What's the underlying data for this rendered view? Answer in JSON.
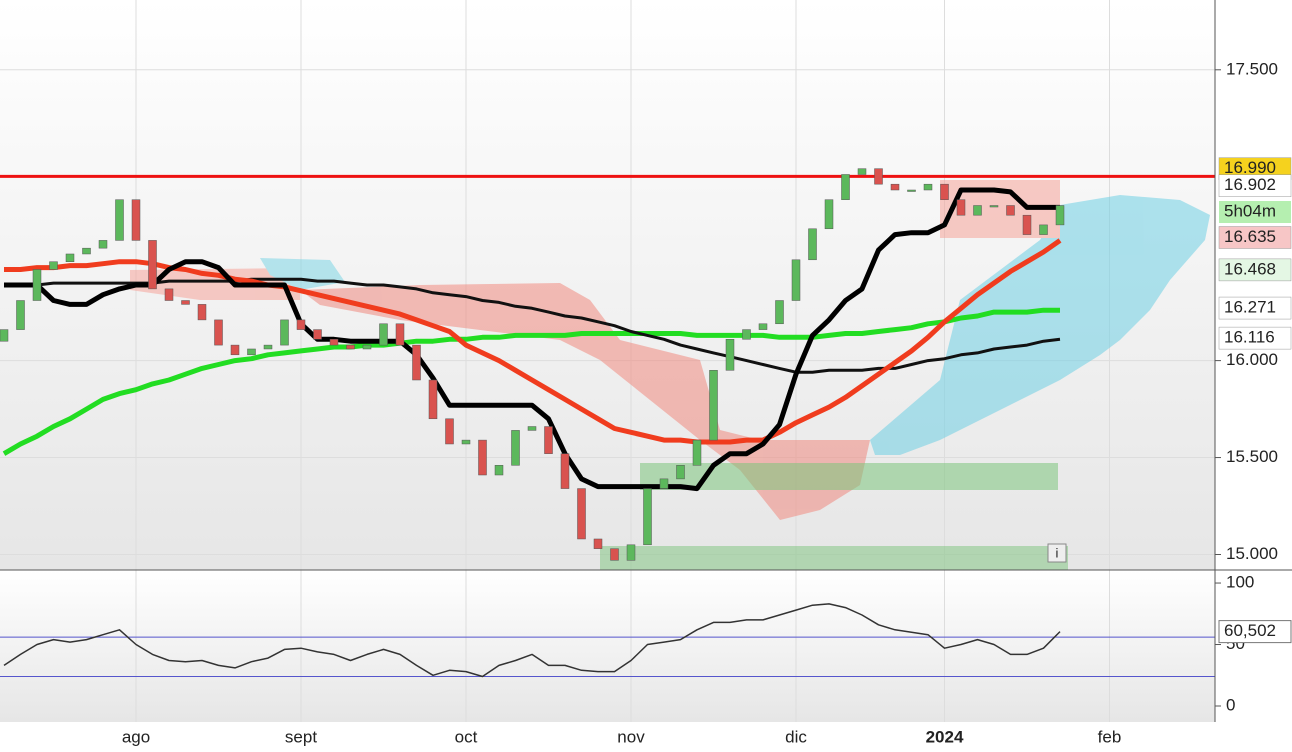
{
  "chart_data": [
    {
      "type": "candlestick",
      "categories": [
        null,
        null,
        null,
        null,
        null,
        null,
        null,
        null,
        "ago",
        null,
        null,
        null,
        null,
        null,
        null,
        null,
        null,
        null,
        "sept",
        null,
        null,
        null,
        null,
        null,
        null,
        null,
        null,
        null,
        "oct",
        null,
        null,
        null,
        null,
        null,
        null,
        null,
        null,
        null,
        "nov",
        null,
        null,
        null,
        null,
        null,
        null,
        null,
        null,
        null,
        "dic",
        null,
        null,
        null,
        null,
        null,
        null,
        null,
        null,
        "2024",
        null,
        null,
        null,
        null,
        null,
        null,
        null,
        null,
        null,
        "feb",
        null,
        null,
        null,
        null,
        null,
        null
      ],
      "open": [
        16.1,
        16.16,
        16.31,
        16.47,
        16.51,
        16.55,
        16.58,
        16.62,
        16.83,
        16.62,
        16.37,
        16.31,
        16.29,
        16.21,
        16.08,
        16.03,
        16.06,
        16.08,
        16.21,
        16.16,
        16.11,
        16.08,
        16.06,
        16.08,
        16.19,
        16.08,
        15.9,
        15.7,
        15.57,
        15.59,
        15.41,
        15.46,
        15.64,
        15.66,
        15.52,
        15.34,
        15.08,
        15.03,
        14.97,
        15.05,
        15.34,
        15.39,
        15.46,
        15.59,
        15.95,
        16.11,
        16.16,
        16.19,
        16.31,
        16.52,
        16.68,
        16.83,
        16.96,
        16.99,
        16.91,
        16.88,
        16.88,
        16.91,
        16.83,
        16.75,
        16.8,
        16.8,
        16.75,
        16.65,
        16.7,
        null,
        null,
        null,
        null,
        null,
        null,
        null,
        null,
        null
      ],
      "close": [
        16.16,
        16.31,
        16.47,
        16.51,
        16.55,
        16.58,
        16.62,
        16.83,
        16.62,
        16.37,
        16.31,
        16.29,
        16.21,
        16.08,
        16.03,
        16.06,
        16.08,
        16.21,
        16.16,
        16.11,
        16.08,
        16.06,
        16.08,
        16.19,
        16.08,
        15.9,
        15.7,
        15.57,
        15.59,
        15.41,
        15.46,
        15.64,
        15.66,
        15.52,
        15.34,
        15.08,
        15.03,
        14.97,
        15.05,
        15.34,
        15.39,
        15.46,
        15.59,
        15.95,
        16.11,
        16.16,
        16.19,
        16.31,
        16.52,
        16.68,
        16.83,
        16.96,
        16.99,
        16.91,
        16.88,
        16.88,
        16.91,
        16.83,
        16.75,
        16.8,
        16.8,
        16.75,
        16.65,
        16.7,
        16.8,
        null,
        null,
        null,
        null,
        null,
        null,
        null,
        null,
        null
      ],
      "up_color": "#5cb85c",
      "down_color": "#d9534f",
      "series": [
        {
          "color": "#22dd22",
          "width": 5,
          "values": [
            15.52,
            15.57,
            15.61,
            15.66,
            15.7,
            15.75,
            15.8,
            15.83,
            15.85,
            15.88,
            15.9,
            15.93,
            15.96,
            15.98,
            16.0,
            16.01,
            16.03,
            16.04,
            16.05,
            16.06,
            16.07,
            16.07,
            16.08,
            16.08,
            16.09,
            16.1,
            16.1,
            16.11,
            16.11,
            16.12,
            16.12,
            16.13,
            16.13,
            16.13,
            16.13,
            16.14,
            16.14,
            16.14,
            16.14,
            16.14,
            16.14,
            16.14,
            16.13,
            16.13,
            16.13,
            16.13,
            16.13,
            16.12,
            16.12,
            16.12,
            16.13,
            16.14,
            16.14,
            16.15,
            16.16,
            16.17,
            16.19,
            16.2,
            16.22,
            16.23,
            16.25,
            16.25,
            16.25,
            16.26,
            16.26,
            null,
            null,
            null,
            null,
            null,
            null,
            null,
            null,
            null
          ]
        },
        {
          "color": "#111111",
          "width": 3,
          "values": [
            16.39,
            16.39,
            16.39,
            16.4,
            16.4,
            16.4,
            16.4,
            16.4,
            16.4,
            16.4,
            16.41,
            16.41,
            16.41,
            16.41,
            16.41,
            16.42,
            16.42,
            16.42,
            16.42,
            16.41,
            16.41,
            16.4,
            16.39,
            16.39,
            16.38,
            16.37,
            16.35,
            16.34,
            16.33,
            16.31,
            16.3,
            16.28,
            16.27,
            16.25,
            16.23,
            16.22,
            16.2,
            16.18,
            16.15,
            16.13,
            16.11,
            16.08,
            16.06,
            16.04,
            16.02,
            16.0,
            15.98,
            15.96,
            15.94,
            15.94,
            15.95,
            15.95,
            15.95,
            15.96,
            15.96,
            15.98,
            16.0,
            16.01,
            16.03,
            16.04,
            16.06,
            16.07,
            16.08,
            16.1,
            16.11,
            null,
            null,
            null,
            null,
            null,
            null,
            null,
            null,
            null
          ]
        },
        {
          "color": "#f03c1e",
          "width": 5,
          "values": [
            16.47,
            16.47,
            16.48,
            16.48,
            16.49,
            16.49,
            16.5,
            16.51,
            16.51,
            16.5,
            16.48,
            16.47,
            16.45,
            16.44,
            16.42,
            16.41,
            16.39,
            16.38,
            16.36,
            16.34,
            16.32,
            16.3,
            16.28,
            16.26,
            16.24,
            16.21,
            16.18,
            16.15,
            16.08,
            16.04,
            16.0,
            15.95,
            15.9,
            15.85,
            15.8,
            15.75,
            15.7,
            15.65,
            15.63,
            15.61,
            15.59,
            15.59,
            15.58,
            15.58,
            15.58,
            15.59,
            15.59,
            15.63,
            15.68,
            15.72,
            15.76,
            15.81,
            15.87,
            15.93,
            15.99,
            16.05,
            16.12,
            16.2,
            16.27,
            16.34,
            16.4,
            16.46,
            16.51,
            16.56,
            16.62,
            null,
            null,
            null,
            null,
            null,
            null,
            null,
            null,
            null
          ]
        },
        {
          "color": "#000000",
          "width": 5,
          "values": [
            16.39,
            16.39,
            16.39,
            16.31,
            16.29,
            16.29,
            16.34,
            16.37,
            16.39,
            16.39,
            16.47,
            16.51,
            16.51,
            16.48,
            16.39,
            16.39,
            16.39,
            16.39,
            16.19,
            16.11,
            16.11,
            16.1,
            16.1,
            16.1,
            16.1,
            16.03,
            15.91,
            15.77,
            15.77,
            15.77,
            15.77,
            15.77,
            15.77,
            15.7,
            15.52,
            15.39,
            15.35,
            15.35,
            15.35,
            15.35,
            15.35,
            15.35,
            15.34,
            15.46,
            15.52,
            15.52,
            15.57,
            15.67,
            15.93,
            16.13,
            16.21,
            16.31,
            16.37,
            16.57,
            16.65,
            16.66,
            16.66,
            16.7,
            16.88,
            16.88,
            16.88,
            16.87,
            16.79,
            16.79,
            16.79,
            null,
            null,
            null,
            null,
            null,
            null,
            null,
            null,
            null
          ]
        }
      ],
      "hline": 16.95,
      "hline_color": "#ee1111",
      "ylim": [
        14.92,
        17.86
      ],
      "yticks": [
        {
          "value": 17.5,
          "label": "17.500"
        },
        {
          "value": 16.0,
          "label": "16.000"
        },
        {
          "value": 15.5,
          "label": "15.500"
        },
        {
          "value": 15.0,
          "label": "15.000"
        }
      ],
      "price_labels": [
        {
          "value": 16.99,
          "label": "16.990",
          "text_color": "#000000",
          "background": "#f5d21e"
        },
        {
          "value": 16.902,
          "label": "16.902",
          "text_color": "#000000",
          "background": "#ffffff"
        },
        {
          "value": 16.635,
          "label": "16.635",
          "text_color": "#e02020",
          "background": "#f7c6c6"
        },
        {
          "value": 16.468,
          "label": "16.468",
          "text_color": "#22bb22",
          "background": "#e4f7e4"
        },
        {
          "value": 16.271,
          "label": "16.271",
          "text_color": "#22bb22",
          "background": "#ffffff"
        },
        {
          "value": 16.116,
          "label": "16.116",
          "text_color": "#000000",
          "background": "#ffffff"
        }
      ],
      "countdown": "5h04m"
    },
    {
      "type": "line",
      "values": [
        33,
        42,
        50,
        54,
        52,
        54,
        58,
        62,
        50,
        42,
        37,
        36,
        37,
        33,
        31,
        36,
        39,
        46,
        47,
        44,
        42,
        37,
        42,
        46,
        42,
        33,
        25,
        29,
        28,
        24,
        33,
        37,
        42,
        33,
        33,
        29,
        28,
        28,
        37,
        50,
        52,
        54,
        62,
        68,
        68,
        70,
        70,
        74,
        78,
        82,
        83,
        80,
        74,
        66,
        62,
        60,
        58,
        47,
        50,
        54,
        50,
        42,
        42,
        47,
        60.5,
        null,
        null,
        null,
        null,
        null,
        null,
        null,
        null,
        null
      ],
      "color": "#333333",
      "ylim": [
        -13,
        110.6
      ],
      "yticks": [
        0,
        50,
        100
      ],
      "levels": [
        56,
        24
      ],
      "level_color": "#5555cc",
      "current": {
        "value": 60.502,
        "label": "60,502"
      }
    }
  ]
}
